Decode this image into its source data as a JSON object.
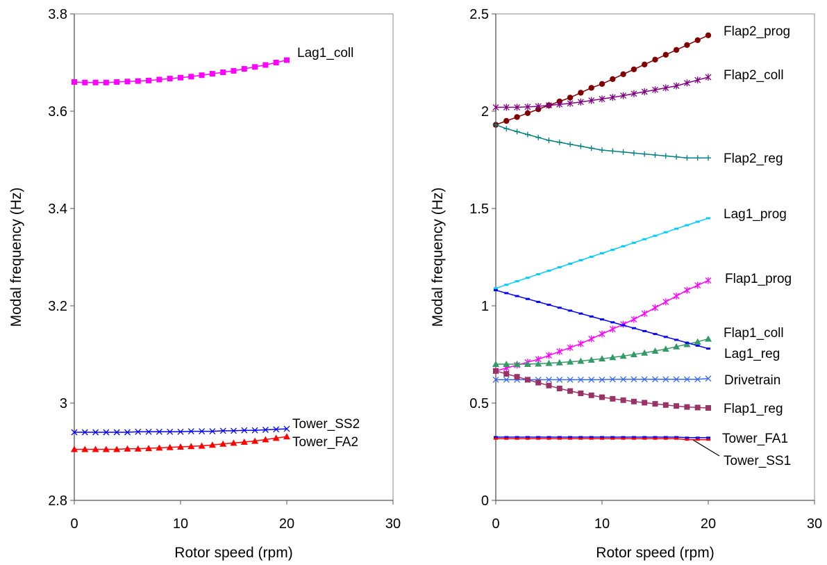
{
  "chart_data": [
    {
      "type": "line",
      "xlabel": "Rotor speed (rpm)",
      "ylabel": "Modal frequency (Hz)",
      "xlim": [
        0,
        30
      ],
      "ylim": [
        2.8,
        3.8
      ],
      "xticks": [
        0,
        10,
        20,
        30
      ],
      "yticks": [
        2.8,
        3,
        3.2,
        3.4,
        3.6,
        3.8
      ],
      "ytick_labels": [
        "2.8",
        "3",
        "3.2",
        "3.4",
        "3.6",
        "3.8"
      ],
      "grid": false,
      "legend": "inline labels at line ends",
      "x": [
        0,
        1,
        2,
        3,
        4,
        5,
        6,
        7,
        8,
        9,
        10,
        11,
        12,
        13,
        14,
        15,
        16,
        17,
        18,
        19,
        20
      ],
      "series": [
        {
          "name": "Lag1_coll",
          "color": "#ff00ff",
          "marker": "square",
          "values": [
            3.66,
            3.659,
            3.659,
            3.659,
            3.66,
            3.661,
            3.662,
            3.663,
            3.665,
            3.667,
            3.669,
            3.671,
            3.674,
            3.677,
            3.68,
            3.683,
            3.687,
            3.691,
            3.695,
            3.7,
            3.705
          ]
        },
        {
          "name": "Tower_SS2",
          "color": "#0000ff",
          "marker": "x",
          "values": [
            2.94,
            2.94,
            2.94,
            2.94,
            2.94,
            2.94,
            2.941,
            2.941,
            2.941,
            2.941,
            2.941,
            2.942,
            2.942,
            2.942,
            2.943,
            2.943,
            2.944,
            2.944,
            2.945,
            2.946,
            2.947
          ]
        },
        {
          "name": "Tower_FA2",
          "color": "#ff0000",
          "marker": "triangle",
          "values": [
            2.905,
            2.905,
            2.905,
            2.905,
            2.905,
            2.906,
            2.906,
            2.907,
            2.908,
            2.909,
            2.91,
            2.911,
            2.912,
            2.914,
            2.916,
            2.918,
            2.92,
            2.922,
            2.925,
            2.928,
            2.931
          ]
        }
      ]
    },
    {
      "type": "line",
      "xlabel": "Rotor speed (rpm)",
      "ylabel": "Modal frequency (Hz)",
      "xlim": [
        0,
        30
      ],
      "ylim": [
        0,
        2.5
      ],
      "xticks": [
        0,
        10,
        20,
        30
      ],
      "yticks": [
        0,
        0.5,
        1,
        1.5,
        2,
        2.5
      ],
      "ytick_labels": [
        "0",
        "0.5",
        "1",
        "1.5",
        "2",
        "2.5"
      ],
      "grid": false,
      "legend": "inline labels at line ends",
      "x": [
        0,
        1,
        2,
        3,
        4,
        5,
        6,
        7,
        8,
        9,
        10,
        11,
        12,
        13,
        14,
        15,
        16,
        17,
        18,
        19,
        20
      ],
      "series": [
        {
          "name": "Flap2_prog",
          "color": "#800000",
          "marker": "circle",
          "values": [
            1.93,
            1.95,
            1.97,
            1.99,
            2.01,
            2.03,
            2.05,
            2.07,
            2.095,
            2.12,
            2.14,
            2.165,
            2.19,
            2.215,
            2.24,
            2.265,
            2.29,
            2.315,
            2.34,
            2.365,
            2.39
          ]
        },
        {
          "name": "Flap2_coll",
          "color": "#800080",
          "marker": "asterisk",
          "values": [
            2.02,
            2.02,
            2.02,
            2.022,
            2.025,
            2.03,
            2.035,
            2.04,
            2.047,
            2.055,
            2.063,
            2.071,
            2.08,
            2.09,
            2.1,
            2.11,
            2.12,
            2.13,
            2.145,
            2.16,
            2.175
          ]
        },
        {
          "name": "Flap2_reg",
          "color": "#008080",
          "marker": "plus",
          "values": [
            1.93,
            1.91,
            1.895,
            1.88,
            1.865,
            1.85,
            1.84,
            1.83,
            1.82,
            1.81,
            1.8,
            1.795,
            1.79,
            1.785,
            1.78,
            1.775,
            1.77,
            1.765,
            1.76,
            1.76,
            1.76
          ]
        },
        {
          "name": "Lag1_prog",
          "color": "#00ccff",
          "marker": "dash",
          "values": [
            1.09,
            1.108,
            1.126,
            1.144,
            1.162,
            1.18,
            1.198,
            1.216,
            1.234,
            1.252,
            1.27,
            1.288,
            1.306,
            1.324,
            1.342,
            1.36,
            1.378,
            1.396,
            1.414,
            1.432,
            1.45
          ]
        },
        {
          "name": "Flap1_prog",
          "color": "#ff00ff",
          "marker": "asterisk",
          "values": [
            0.665,
            0.68,
            0.695,
            0.71,
            0.725,
            0.745,
            0.765,
            0.785,
            0.805,
            0.83,
            0.855,
            0.88,
            0.905,
            0.93,
            0.96,
            0.99,
            1.02,
            1.05,
            1.08,
            1.105,
            1.13
          ]
        },
        {
          "name": "Flap1_coll",
          "color": "#339966",
          "marker": "triangle",
          "values": [
            0.7,
            0.7,
            0.7,
            0.7,
            0.702,
            0.705,
            0.708,
            0.712,
            0.716,
            0.722,
            0.728,
            0.735,
            0.742,
            0.75,
            0.758,
            0.768,
            0.778,
            0.79,
            0.802,
            0.815,
            0.83
          ]
        },
        {
          "name": "Lag1_reg",
          "color": "#0000ff",
          "marker": "dash",
          "values": [
            1.08,
            1.065,
            1.05,
            1.035,
            1.02,
            1.005,
            0.99,
            0.975,
            0.96,
            0.945,
            0.93,
            0.915,
            0.9,
            0.885,
            0.87,
            0.855,
            0.84,
            0.825,
            0.81,
            0.795,
            0.78
          ]
        },
        {
          "name": "Drivetrain",
          "color": "#3366ff",
          "marker": "x",
          "values": [
            0.62,
            0.62,
            0.62,
            0.62,
            0.62,
            0.62,
            0.62,
            0.62,
            0.62,
            0.62,
            0.62,
            0.622,
            0.622,
            0.622,
            0.622,
            0.622,
            0.622,
            0.622,
            0.622,
            0.622,
            0.626
          ]
        },
        {
          "name": "Flap1_reg",
          "color": "#993366",
          "marker": "square",
          "values": [
            0.665,
            0.65,
            0.635,
            0.62,
            0.605,
            0.59,
            0.575,
            0.562,
            0.55,
            0.54,
            0.53,
            0.522,
            0.515,
            0.508,
            0.502,
            0.496,
            0.49,
            0.485,
            0.48,
            0.477,
            0.475
          ]
        },
        {
          "name": "Tower_FA1",
          "color": "#0000ff",
          "marker": "dash",
          "values": [
            0.325,
            0.325,
            0.325,
            0.325,
            0.325,
            0.325,
            0.325,
            0.325,
            0.325,
            0.325,
            0.325,
            0.325,
            0.325,
            0.325,
            0.325,
            0.325,
            0.325,
            0.325,
            0.322,
            0.322,
            0.322
          ]
        },
        {
          "name": "Tower_SS1",
          "color": "#ff0000",
          "marker": "dash",
          "values": [
            0.317,
            0.317,
            0.317,
            0.317,
            0.317,
            0.317,
            0.317,
            0.317,
            0.317,
            0.317,
            0.317,
            0.317,
            0.317,
            0.317,
            0.317,
            0.317,
            0.317,
            0.317,
            0.312,
            0.312,
            0.312
          ]
        }
      ]
    }
  ]
}
